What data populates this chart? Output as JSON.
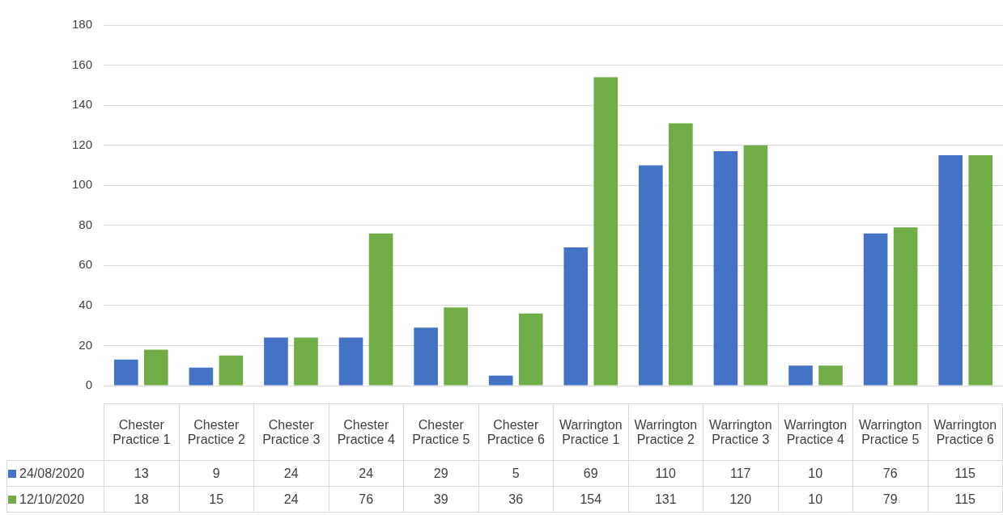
{
  "chart_data": {
    "type": "bar",
    "categories": [
      "Chester Practice 1",
      "Chester Practice 2",
      "Chester Practice 3",
      "Chester Practice 4",
      "Chester Practice 5",
      "Chester Practice 6",
      "Warrington Practice 1",
      "Warrington Practice 2",
      "Warrington Practice 3",
      "Warrington Practice 4",
      "Warrington Practice 5",
      "Warrington Practice 6"
    ],
    "series": [
      {
        "name": "24/08/2020",
        "color": "#4472c4",
        "values": [
          13,
          9,
          24,
          24,
          29,
          5,
          69,
          110,
          117,
          10,
          76,
          115
        ]
      },
      {
        "name": "12/10/2020",
        "color": "#70ad47",
        "values": [
          18,
          15,
          24,
          76,
          39,
          36,
          154,
          131,
          120,
          10,
          79,
          115
        ]
      }
    ],
    "ylim": [
      0,
      180
    ],
    "yticks": [
      0,
      20,
      40,
      60,
      80,
      100,
      120,
      140,
      160,
      180
    ],
    "grid": "y",
    "legend": "bottom",
    "data_labels": true
  }
}
